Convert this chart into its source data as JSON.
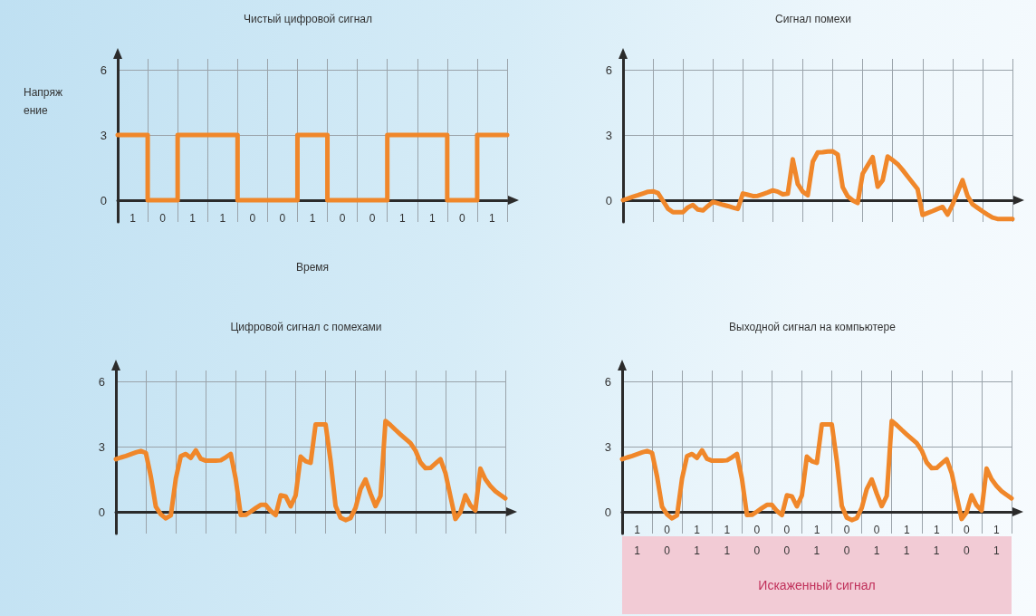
{
  "chart_data": [
    {
      "type": "step",
      "title": "Чистый цифровой сигнал",
      "xlabel": "Время",
      "ylabel": "Напряжение",
      "ylim": [
        -1,
        6.5
      ],
      "yticks": [
        0,
        3,
        6
      ],
      "grid": true,
      "categories": [
        null,
        null,
        null,
        "1",
        null,
        null,
        null,
        null,
        null,
        "0",
        null,
        null,
        null,
        null,
        null,
        "1",
        null,
        null,
        null,
        null,
        null,
        "1",
        null,
        null,
        null,
        null,
        null,
        "0",
        null,
        null,
        null,
        null,
        null,
        "0",
        null,
        null,
        null,
        null,
        null,
        "1",
        null,
        null,
        null,
        null,
        null,
        "0",
        null,
        null,
        null,
        null,
        null,
        "0",
        null,
        null,
        null,
        null,
        null,
        "1",
        null,
        null,
        null,
        null,
        null,
        "1",
        null,
        null,
        null,
        null,
        null,
        "0",
        null,
        null,
        null,
        null,
        null,
        "1",
        null,
        null,
        null
      ],
      "series": [
        {
          "color": "#f0872a",
          "values": [
            3,
            3,
            3,
            3,
            3,
            3,
            0,
            0,
            0,
            0,
            0,
            0,
            3,
            3,
            3,
            3,
            3,
            3,
            3,
            3,
            3,
            3,
            3,
            3,
            0,
            0,
            0,
            0,
            0,
            0,
            0,
            0,
            0,
            0,
            0,
            0,
            3,
            3,
            3,
            3,
            3,
            3,
            0,
            0,
            0,
            0,
            0,
            0,
            0,
            0,
            0,
            0,
            0,
            0,
            3,
            3,
            3,
            3,
            3,
            3,
            3,
            3,
            3,
            3,
            3,
            3,
            0,
            0,
            0,
            0,
            0,
            0,
            3,
            3,
            3,
            3,
            3,
            3,
            3
          ]
        }
      ]
    },
    {
      "type": "line",
      "title": "Сигнал помехи",
      "ylim": [
        -1,
        6.5
      ],
      "yticks": [
        0,
        3,
        6
      ],
      "grid": true,
      "categories": [
        null,
        null,
        null,
        null,
        null,
        null,
        null,
        null,
        null,
        null,
        null,
        null,
        null,
        null,
        null,
        null,
        null,
        null,
        null,
        null,
        null,
        null,
        null,
        null,
        null,
        null,
        null,
        null,
        null,
        null,
        null,
        null,
        null,
        null,
        null,
        null,
        null,
        null,
        null,
        null,
        null,
        null,
        null,
        null,
        null,
        null,
        null,
        null,
        null,
        null,
        null,
        null,
        null,
        null,
        null,
        null,
        null,
        null,
        null,
        null,
        null,
        null,
        null,
        null,
        null,
        null,
        null,
        null,
        null,
        null,
        null,
        null,
        null,
        null,
        null,
        null,
        null,
        null,
        null
      ],
      "series": [
        {
          "color": "#f0872a",
          "values": [
            0,
            0.08,
            0.16,
            0.23,
            0.31,
            0.39,
            0.41,
            0.33,
            -0.03,
            -0.39,
            -0.55,
            -0.55,
            -0.55,
            -0.33,
            -0.22,
            -0.43,
            -0.47,
            -0.27,
            -0.08,
            -0.14,
            -0.21,
            -0.27,
            -0.34,
            -0.4,
            0.31,
            0.25,
            0.19,
            0.2,
            0.28,
            0.36,
            0.45,
            0.39,
            0.27,
            0.3,
            1.88,
            0.74,
            0.39,
            0.23,
            1.77,
            2.2,
            2.21,
            2.24,
            2.25,
            2.1,
            0.6,
            0.18,
            -0.01,
            -0.13,
            1.22,
            1.6,
            1.98,
            0.62,
            0.92,
            2.01,
            1.84,
            1.66,
            1.39,
            1.09,
            0.8,
            0.51,
            -0.68,
            -0.59,
            -0.5,
            -0.4,
            -0.31,
            -0.66,
            -0.2,
            0.36,
            0.92,
            0.2,
            -0.19,
            -0.35,
            -0.51,
            -0.66,
            -0.8,
            -0.86,
            -0.86,
            -0.86,
            -0.86
          ]
        }
      ]
    },
    {
      "type": "line",
      "title": "Цифровой сигнал с помехами",
      "ylim": [
        -1,
        6.5
      ],
      "yticks": [
        0,
        3,
        6
      ],
      "grid": true,
      "categories": [
        null,
        null,
        null,
        null,
        null,
        null,
        null,
        null,
        null,
        null,
        null,
        null,
        null,
        null,
        null,
        null,
        null,
        null,
        null,
        null,
        null,
        null,
        null,
        null,
        null,
        null,
        null,
        null,
        null,
        null,
        null,
        null,
        null,
        null,
        null,
        null,
        null,
        null,
        null,
        null,
        null,
        null,
        null,
        null,
        null,
        null,
        null,
        null,
        null,
        null,
        null,
        null,
        null,
        null,
        null,
        null,
        null,
        null,
        null,
        null,
        null,
        null,
        null,
        null,
        null,
        null,
        null,
        null,
        null,
        null,
        null,
        null,
        null,
        null,
        null,
        null,
        null,
        null,
        null
      ],
      "series": [
        {
          "color": "#f0872a",
          "values": [
            2.42,
            2.5,
            2.57,
            2.65,
            2.73,
            2.8,
            2.71,
            1.62,
            0.23,
            -0.12,
            -0.3,
            -0.16,
            1.53,
            2.56,
            2.66,
            2.48,
            2.83,
            2.44,
            2.35,
            2.35,
            2.35,
            2.37,
            2.51,
            2.66,
            1.51,
            -0.15,
            -0.14,
            0.01,
            0.17,
            0.32,
            0.32,
            0.04,
            -0.15,
            0.76,
            0.71,
            0.25,
            0.75,
            2.54,
            2.33,
            2.25,
            4.02,
            4.02,
            4.02,
            2.35,
            0.27,
            -0.27,
            -0.38,
            -0.29,
            0.18,
            1.05,
            1.49,
            0.84,
            0.26,
            0.73,
            4.18,
            3.99,
            3.77,
            3.56,
            3.36,
            3.16,
            2.82,
            2.27,
            2.01,
            2.02,
            2.22,
            2.42,
            1.79,
            0.72,
            -0.33,
            -0.02,
            0.76,
            0.3,
            0.06,
            1.99,
            1.5,
            1.19,
            0.95,
            0.78,
            0.62
          ]
        }
      ]
    },
    {
      "type": "line",
      "title": "Выходной сигнал на компьютере",
      "ylim": [
        -1,
        6.5
      ],
      "yticks": [
        0,
        3,
        6
      ],
      "grid": true,
      "annotations": [
        "1 0 1 1 0 0 1 0 1 1 1 0 1",
        "Искаженный сигнал"
      ],
      "categories": [
        null,
        null,
        null,
        "1",
        null,
        null,
        null,
        null,
        null,
        "0",
        null,
        null,
        null,
        null,
        null,
        "1",
        null,
        null,
        null,
        null,
        null,
        "1",
        null,
        null,
        null,
        null,
        null,
        "0",
        null,
        null,
        null,
        null,
        null,
        "0",
        null,
        null,
        null,
        null,
        null,
        "1",
        null,
        null,
        null,
        null,
        null,
        "0",
        null,
        null,
        null,
        null,
        null,
        "0",
        null,
        null,
        null,
        null,
        null,
        "1",
        null,
        null,
        null,
        null,
        null,
        "1",
        null,
        null,
        null,
        null,
        null,
        "0",
        null,
        null,
        null,
        null,
        null,
        "1",
        null,
        null,
        null
      ],
      "series": [
        {
          "color": "#f0872a",
          "values": [
            2.42,
            2.5,
            2.57,
            2.65,
            2.73,
            2.8,
            2.71,
            1.62,
            0.23,
            -0.12,
            -0.3,
            -0.16,
            1.53,
            2.56,
            2.66,
            2.48,
            2.83,
            2.44,
            2.35,
            2.35,
            2.35,
            2.37,
            2.51,
            2.66,
            1.51,
            -0.15,
            -0.14,
            0.01,
            0.17,
            0.32,
            0.32,
            0.04,
            -0.15,
            0.76,
            0.71,
            0.25,
            0.75,
            2.54,
            2.33,
            2.25,
            4.02,
            4.02,
            4.02,
            2.35,
            0.27,
            -0.27,
            -0.38,
            -0.29,
            0.18,
            1.05,
            1.49,
            0.84,
            0.26,
            0.73,
            4.18,
            3.99,
            3.77,
            3.56,
            3.36,
            3.16,
            2.82,
            2.27,
            2.01,
            2.02,
            2.22,
            2.42,
            1.79,
            0.72,
            -0.33,
            -0.02,
            0.76,
            0.3,
            0.06,
            1.99,
            1.5,
            1.19,
            0.95,
            0.78,
            0.62
          ]
        }
      ]
    }
  ]
}
